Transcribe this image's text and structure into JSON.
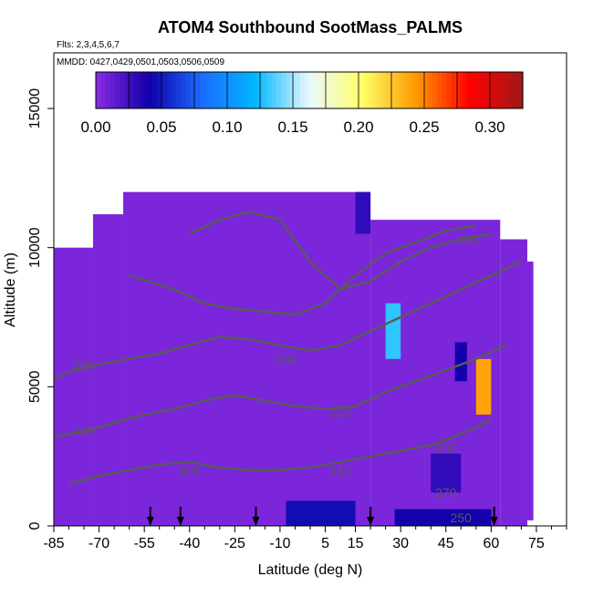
{
  "chart_data": {
    "type": "heatmap",
    "title": "ATOM4 Southbound SootMass_PALMS",
    "flights_label": "Flts: 2,3,4,5,6,7",
    "dates_label": "MMDD: 0427,0429,0501,0503,0506,0509",
    "xlabel": "Latitude (deg N)",
    "ylabel": "Altitude (m)",
    "xlim": [
      -85,
      85
    ],
    "ylim": [
      0,
      17000
    ],
    "x_ticks": [
      -85,
      -70,
      -55,
      -40,
      -25,
      -10,
      5,
      15,
      30,
      45,
      60,
      75
    ],
    "y_ticks": [
      0,
      5000,
      10000,
      15000
    ],
    "colorbar": {
      "range": [
        0,
        0.325
      ],
      "ticks": [
        0.0,
        0.05,
        0.1,
        0.15,
        0.2,
        0.25,
        0.3
      ],
      "tick_labels": [
        "0.00",
        "0.05",
        "0.10",
        "0.15",
        "0.20",
        "0.25",
        "0.30"
      ],
      "stops": [
        "#8a2be2",
        "#1100aa",
        "#1a6dff",
        "#00b8ff",
        "#eaf8ff",
        "#ffff66",
        "#ff9900",
        "#ff0000",
        "#a01818"
      ]
    },
    "background_value": 0.005,
    "coverage": [
      {
        "x": [
          -85,
          -72
        ],
        "y": [
          0,
          10000
        ]
      },
      {
        "x": [
          -72,
          -62
        ],
        "y": [
          0,
          11200
        ]
      },
      {
        "x": [
          -62,
          20
        ],
        "y": [
          0,
          12000
        ]
      },
      {
        "x": [
          20,
          63
        ],
        "y": [
          0,
          11000
        ]
      },
      {
        "x": [
          63,
          72
        ],
        "y": [
          0,
          10300
        ]
      },
      {
        "x": [
          72,
          74
        ],
        "y": [
          200,
          9500
        ]
      }
    ],
    "hotspots": [
      {
        "x": [
          15,
          20
        ],
        "y": [
          10500,
          12000
        ],
        "value": 0.03
      },
      {
        "x": [
          25,
          30
        ],
        "y": [
          6000,
          8000
        ],
        "value": 0.13
      },
      {
        "x": [
          55,
          60
        ],
        "y": [
          4000,
          6000
        ],
        "value": 0.24
      },
      {
        "x": [
          48,
          52
        ],
        "y": [
          5200,
          6600
        ],
        "value": 0.04
      },
      {
        "x": [
          -8,
          15
        ],
        "y": [
          0,
          900
        ],
        "value": 0.045
      },
      {
        "x": [
          28,
          60
        ],
        "y": [
          0,
          600
        ],
        "value": 0.04
      },
      {
        "x": [
          40,
          50
        ],
        "y": [
          1200,
          2600
        ],
        "value": 0.03
      }
    ],
    "contour_labels": [
      {
        "text": "280",
        "x": -75,
        "y": 5800
      },
      {
        "text": "290",
        "x": -75,
        "y": 3400
      },
      {
        "text": "300",
        "x": -40,
        "y": 2000
      },
      {
        "text": "310",
        "x": 10,
        "y": 2000
      },
      {
        "text": "320",
        "x": 10,
        "y": 4100
      },
      {
        "text": "330",
        "x": -8,
        "y": 6000
      },
      {
        "text": "300",
        "x": 45,
        "y": 2800
      },
      {
        "text": "270",
        "x": 45,
        "y": 1200
      },
      {
        "text": "250",
        "x": 50,
        "y": 300
      },
      {
        "text": "340",
        "x": 53,
        "y": 10300
      }
    ],
    "contour_lines": [
      {
        "x": [
          -85,
          -78,
          -70,
          -60,
          -50,
          -40,
          -30,
          -20,
          -10,
          0,
          10,
          20,
          30,
          40,
          50,
          60,
          70
        ],
        "y": [
          5300,
          5600,
          5800,
          6000,
          6200,
          6500,
          6800,
          6700,
          6500,
          6300,
          6500,
          7000,
          7500,
          8000,
          8500,
          9000,
          9500
        ]
      },
      {
        "x": [
          -85,
          -75,
          -65,
          -55,
          -45,
          -35,
          -25,
          -15,
          -5,
          5,
          15,
          25,
          35,
          45,
          55,
          65
        ],
        "y": [
          3200,
          3400,
          3700,
          4000,
          4200,
          4500,
          4700,
          4500,
          4300,
          4200,
          4300,
          4800,
          5200,
          5600,
          6000,
          6500
        ]
      },
      {
        "x": [
          -80,
          -70,
          -60,
          -50,
          -40,
          -30,
          -20,
          -10,
          0,
          10,
          20,
          30,
          40,
          50,
          60
        ],
        "y": [
          1500,
          1800,
          2000,
          2200,
          2300,
          2100,
          2000,
          2000,
          2100,
          2300,
          2500,
          2700,
          2900,
          3300,
          3800
        ]
      },
      {
        "x": [
          -40,
          -30,
          -20,
          -10,
          0,
          10,
          20,
          30,
          40,
          50,
          60
        ],
        "y": [
          10500,
          11000,
          11300,
          11000,
          9500,
          8500,
          8800,
          9500,
          10000,
          10300,
          10500
        ]
      },
      {
        "x": [
          -60,
          -45,
          -35,
          -25,
          -15,
          -5,
          5,
          15,
          25,
          35,
          45,
          55
        ],
        "y": [
          9000,
          8500,
          8000,
          7800,
          7700,
          7600,
          8000,
          9000,
          9800,
          10200,
          10600,
          10800
        ]
      }
    ],
    "flight_arrows_x": [
      -53,
      -43,
      -18,
      20,
      61
    ]
  }
}
